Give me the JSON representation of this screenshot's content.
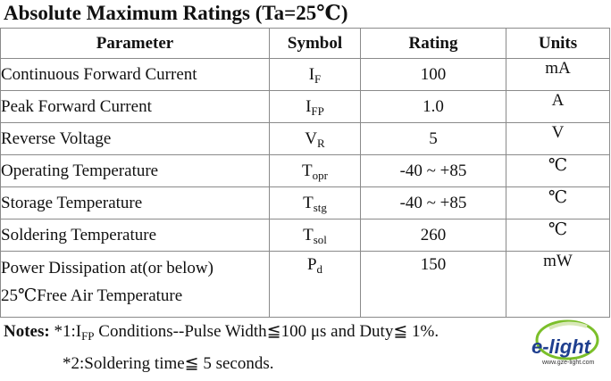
{
  "title": "Absolute Maximum Ratings (Ta=25℃)",
  "headers": {
    "parameter": "Parameter",
    "symbol": "Symbol",
    "rating": "Rating",
    "units": "Units"
  },
  "rows": [
    {
      "parameter": "Continuous Forward Current",
      "symbol_base": "I",
      "symbol_sub": "F",
      "rating": "100",
      "unit": "mA"
    },
    {
      "parameter": "Peak Forward Current",
      "symbol_base": "I",
      "symbol_sub": "FP",
      "rating": "1.0",
      "unit": "A"
    },
    {
      "parameter": "Reverse Voltage",
      "symbol_base": "V",
      "symbol_sub": "R",
      "rating": "5",
      "unit": "V"
    },
    {
      "parameter": "Operating Temperature",
      "symbol_base": "T",
      "symbol_sub": "opr",
      "rating": "-40 ~ +85",
      "unit": "℃"
    },
    {
      "parameter": "Storage Temperature",
      "symbol_base": "T",
      "symbol_sub": "stg",
      "rating": "-40 ~ +85",
      "unit": "℃"
    },
    {
      "parameter": "Soldering Temperature",
      "symbol_base": "T",
      "symbol_sub": "sol",
      "rating": "260",
      "unit": "℃"
    },
    {
      "parameter_line1": "Power Dissipation at(or below)",
      "parameter_line2": "25℃Free Air Temperature",
      "symbol_base": "P",
      "symbol_sub": "d",
      "rating": "150",
      "unit": "mW"
    }
  ],
  "notes": {
    "label": "Notes:",
    "note1_prefix": "*1:I",
    "note1_sub": "FP",
    "note1_rest": " Conditions--Pulse Width≦100 μs and Duty≦ 1%.",
    "note2": "*2:Soldering time≦ 5 seconds."
  },
  "logo": {
    "brand": "e-light",
    "url_text": "www.gze-light.com",
    "colors": {
      "green": "#7bbf2a",
      "blue": "#1f3f8f",
      "dark": "#333333"
    }
  }
}
